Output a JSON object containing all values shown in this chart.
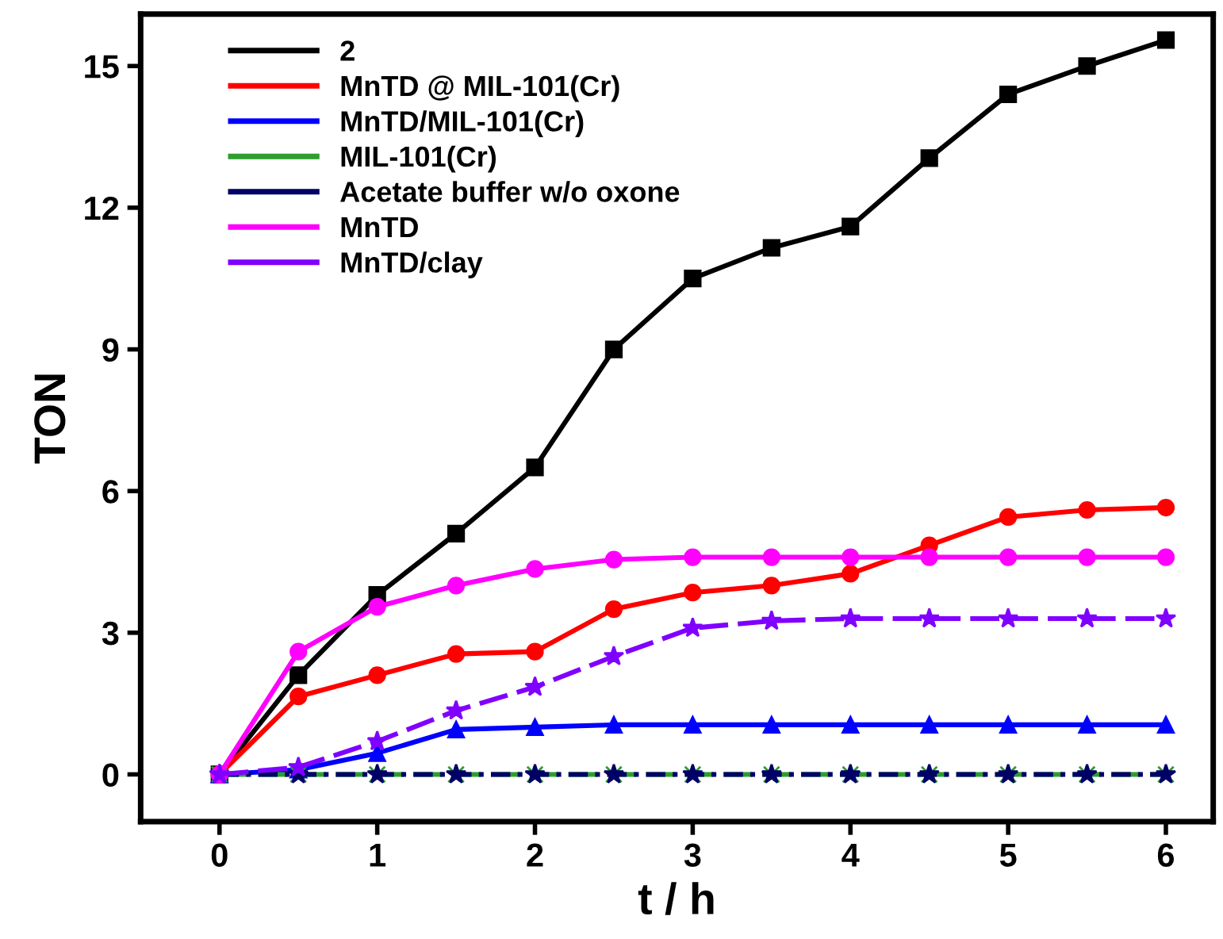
{
  "chart_data": {
    "type": "line",
    "xlabel": "t / h",
    "ylabel": "TON",
    "x": [
      0,
      0.5,
      1,
      1.5,
      2,
      2.5,
      3,
      3.5,
      4,
      4.5,
      5,
      5.5,
      6
    ],
    "xlim": [
      -0.5,
      6.3
    ],
    "xticks": [
      0,
      1,
      2,
      3,
      4,
      5,
      6
    ],
    "ylim": [
      -1,
      16.1
    ],
    "yticks": [
      0,
      3,
      6,
      9,
      12,
      15
    ],
    "grid": false,
    "legend": "top left",
    "series": [
      {
        "name": "2",
        "color": "#000000",
        "marker": "square",
        "line_style": "solid",
        "values": [
          0,
          2.1,
          3.8,
          5.1,
          6.5,
          9.0,
          10.5,
          11.15,
          11.6,
          13.05,
          14.4,
          15.0,
          15.55
        ]
      },
      {
        "name": "MnTD @ MIL-101(Cr)",
        "color": "#ff0000",
        "marker": "circle",
        "line_style": "solid",
        "values": [
          0,
          1.65,
          2.1,
          2.55,
          2.6,
          3.5,
          3.85,
          4.0,
          4.25,
          4.85,
          5.45,
          5.6,
          5.65
        ]
      },
      {
        "name": "MnTD/MIL-101(Cr)",
        "color": "#0000ff",
        "marker": "triangle",
        "line_style": "solid",
        "values": [
          0,
          0.1,
          0.45,
          0.95,
          1.0,
          1.05,
          1.05,
          1.05,
          1.05,
          1.05,
          1.05,
          1.05,
          1.05
        ]
      },
      {
        "name": "MIL-101(Cr)",
        "color": "#2e9e2e",
        "marker": "cross",
        "line_style": "dashed",
        "values": [
          0,
          0,
          0,
          0,
          0,
          0,
          0,
          0,
          0,
          0,
          0,
          0,
          0
        ]
      },
      {
        "name": "Acetate buffer w/o oxone",
        "color": "#000066",
        "marker": "star",
        "line_style": "dotted",
        "values": [
          0,
          0,
          0,
          0,
          0,
          0,
          0,
          0,
          0,
          0,
          0,
          0,
          0
        ]
      },
      {
        "name": "MnTD",
        "color": "#ff00ff",
        "marker": "circle",
        "line_style": "solid",
        "values": [
          0,
          2.6,
          3.55,
          4.0,
          4.35,
          4.55,
          4.6,
          4.6,
          4.6,
          4.6,
          4.6,
          4.6,
          4.6
        ]
      },
      {
        "name": "MnTD/clay",
        "color": "#8000ff",
        "marker": "star",
        "line_style": "dashed",
        "values": [
          0,
          0.15,
          0.7,
          1.35,
          1.85,
          2.5,
          3.1,
          3.25,
          3.3,
          3.3,
          3.3,
          3.3,
          3.3
        ]
      }
    ]
  }
}
